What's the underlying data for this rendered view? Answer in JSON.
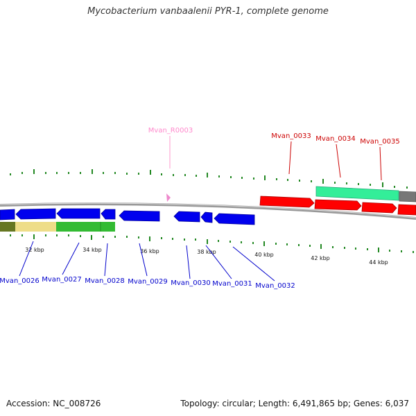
{
  "title": "Mycobacterium vanbaalenii PYR-1, complete genome",
  "footer": {
    "accession": "Accession: NC_008726",
    "summary": "Topology: circular; Length: 6,491,865 bp; Genes: 6,037"
  },
  "colors": {
    "forward_gene": "#ff0000",
    "reverse_gene": "#0000ff",
    "rna_gene": "#ee88cc",
    "forward_label": "#cc0000",
    "reverse_label": "#0000cc",
    "rna_label": "#ff88cc",
    "tick": "#228822",
    "backbone": "#888888"
  },
  "kbp_labels": [
    "32 kbp",
    "34 kbp",
    "36 kbp",
    "38 kbp",
    "40 kbp",
    "42 kbp",
    "44 kbp"
  ],
  "gene_labels": {
    "Mvan_R0003": "Mvan_R0003",
    "Mvan_0033": "Mvan_0033",
    "Mvan_0034": "Mvan_0034",
    "Mvan_0035": "Mvan_0035",
    "Mvan_0026": "Mvan_0026",
    "Mvan_0027": "Mvan_0027",
    "Mvan_0028": "Mvan_0028",
    "Mvan_0029": "Mvan_0029",
    "Mvan_0030": "Mvan_0030",
    "Mvan_0031": "Mvan_0031",
    "Mvan_0032": "Mvan_0032"
  }
}
